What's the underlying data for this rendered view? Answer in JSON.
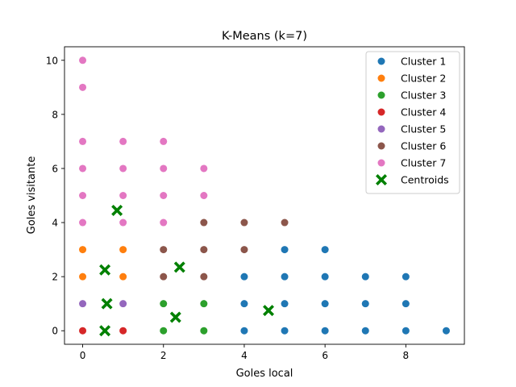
{
  "chart_data": {
    "type": "scatter",
    "title": "K-Means (k=7)",
    "xlabel": "Goles local",
    "ylabel": "Goles visitante",
    "xlim": [
      -0.45,
      9.45
    ],
    "ylim": [
      -0.5,
      10.5
    ],
    "xticks": [
      0,
      2,
      4,
      6,
      8
    ],
    "yticks": [
      0,
      2,
      4,
      6,
      8,
      10
    ],
    "grid": false,
    "legend_position": "top-right",
    "series": [
      {
        "name": "Cluster 1",
        "color": "#1f77b4",
        "marker": "circle",
        "points": [
          [
            4,
            0
          ],
          [
            4,
            1
          ],
          [
            4,
            2
          ],
          [
            5,
            0
          ],
          [
            5,
            1
          ],
          [
            5,
            2
          ],
          [
            5,
            3
          ],
          [
            6,
            0
          ],
          [
            6,
            1
          ],
          [
            6,
            2
          ],
          [
            6,
            3
          ],
          [
            7,
            0
          ],
          [
            7,
            1
          ],
          [
            7,
            2
          ],
          [
            8,
            0
          ],
          [
            8,
            1
          ],
          [
            8,
            2
          ],
          [
            9,
            0
          ]
        ]
      },
      {
        "name": "Cluster 2",
        "color": "#ff7f0e",
        "marker": "circle",
        "points": [
          [
            0,
            2
          ],
          [
            0,
            3
          ],
          [
            1,
            2
          ],
          [
            1,
            3
          ]
        ]
      },
      {
        "name": "Cluster 3",
        "color": "#2ca02c",
        "marker": "circle",
        "points": [
          [
            2,
            0
          ],
          [
            2,
            1
          ],
          [
            3,
            0
          ],
          [
            3,
            1
          ]
        ]
      },
      {
        "name": "Cluster 4",
        "color": "#d62728",
        "marker": "circle",
        "points": [
          [
            0,
            0
          ],
          [
            1,
            0
          ]
        ]
      },
      {
        "name": "Cluster 5",
        "color": "#9467bd",
        "marker": "circle",
        "points": [
          [
            0,
            1
          ],
          [
            1,
            1
          ]
        ]
      },
      {
        "name": "Cluster 6",
        "color": "#8c564b",
        "marker": "circle",
        "points": [
          [
            2,
            2
          ],
          [
            2,
            3
          ],
          [
            3,
            2
          ],
          [
            3,
            3
          ],
          [
            3,
            4
          ],
          [
            4,
            3
          ],
          [
            4,
            4
          ],
          [
            5,
            4
          ]
        ]
      },
      {
        "name": "Cluster 7",
        "color": "#e377c2",
        "marker": "circle",
        "points": [
          [
            0,
            4
          ],
          [
            0,
            5
          ],
          [
            0,
            6
          ],
          [
            0,
            7
          ],
          [
            0,
            9
          ],
          [
            0,
            10
          ],
          [
            1,
            4
          ],
          [
            1,
            5
          ],
          [
            1,
            6
          ],
          [
            1,
            7
          ],
          [
            2,
            4
          ],
          [
            2,
            5
          ],
          [
            2,
            6
          ],
          [
            2,
            7
          ],
          [
            3,
            5
          ],
          [
            3,
            6
          ]
        ]
      },
      {
        "name": "Centroids",
        "color": "#008000",
        "marker": "X",
        "points": [
          [
            0.85,
            4.45
          ],
          [
            0.55,
            2.25
          ],
          [
            2.4,
            2.35
          ],
          [
            0.6,
            1.0
          ],
          [
            0.55,
            0.0
          ],
          [
            2.3,
            0.5
          ],
          [
            4.6,
            0.75
          ]
        ]
      }
    ]
  }
}
